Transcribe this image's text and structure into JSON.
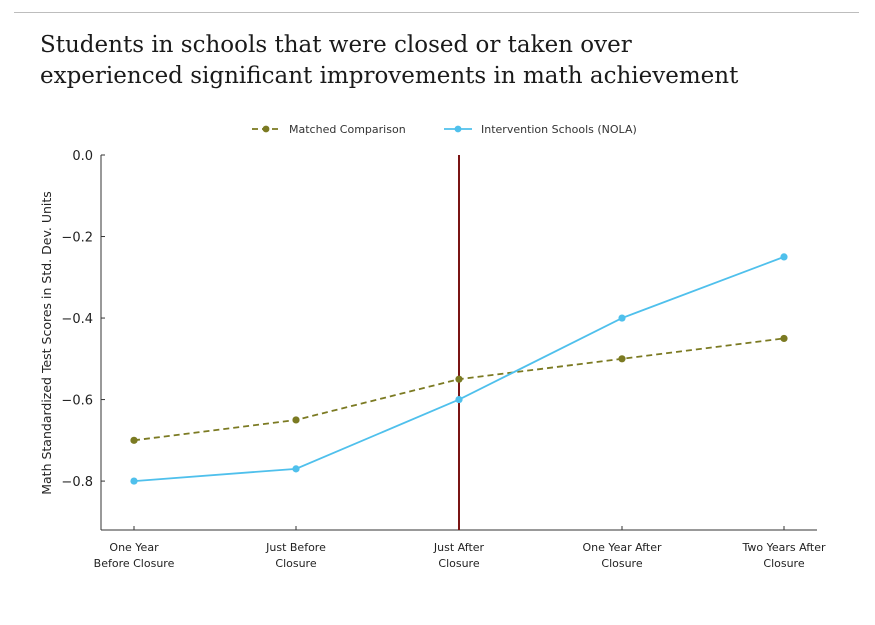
{
  "title_lines": [
    "Students in schools that were closed or taken over",
    "experienced significant improvements in math achievement"
  ],
  "colors": {
    "comparison": "#7b7a22",
    "intervention": "#4fc0ec",
    "event_line": "#7a1414",
    "axis": "#333333"
  },
  "chart_data": {
    "type": "line",
    "categories": [
      [
        "One Year",
        "Before Closure"
      ],
      [
        "Just Before",
        "Closure"
      ],
      [
        "Just After",
        "Closure"
      ],
      [
        "One Year After",
        "Closure"
      ],
      [
        "Two Years After",
        "Closure"
      ]
    ],
    "series": [
      {
        "name": "Matched Comparison",
        "style": "dashed",
        "color": "#7b7a22",
        "values": [
          -0.7,
          -0.65,
          -0.55,
          -0.5,
          -0.45
        ]
      },
      {
        "name": "Intervention Schools (NOLA)",
        "style": "solid",
        "color": "#4fc0ec",
        "values": [
          -0.8,
          -0.77,
          -0.6,
          -0.4,
          -0.25
        ]
      }
    ],
    "ylabel": "Math Standardized Test Scores in Std. Dev. Units",
    "xlabel": "",
    "ylim": [
      -0.92,
      0.0
    ],
    "yticks": [
      0.0,
      -0.2,
      -0.4,
      -0.6,
      -0.8
    ],
    "ytick_labels": [
      "0.0",
      "−0.2",
      "−0.4",
      "−0.6",
      "−0.8"
    ],
    "event_marker_category_index": 2,
    "legend_position": "top-center",
    "grid": false
  }
}
